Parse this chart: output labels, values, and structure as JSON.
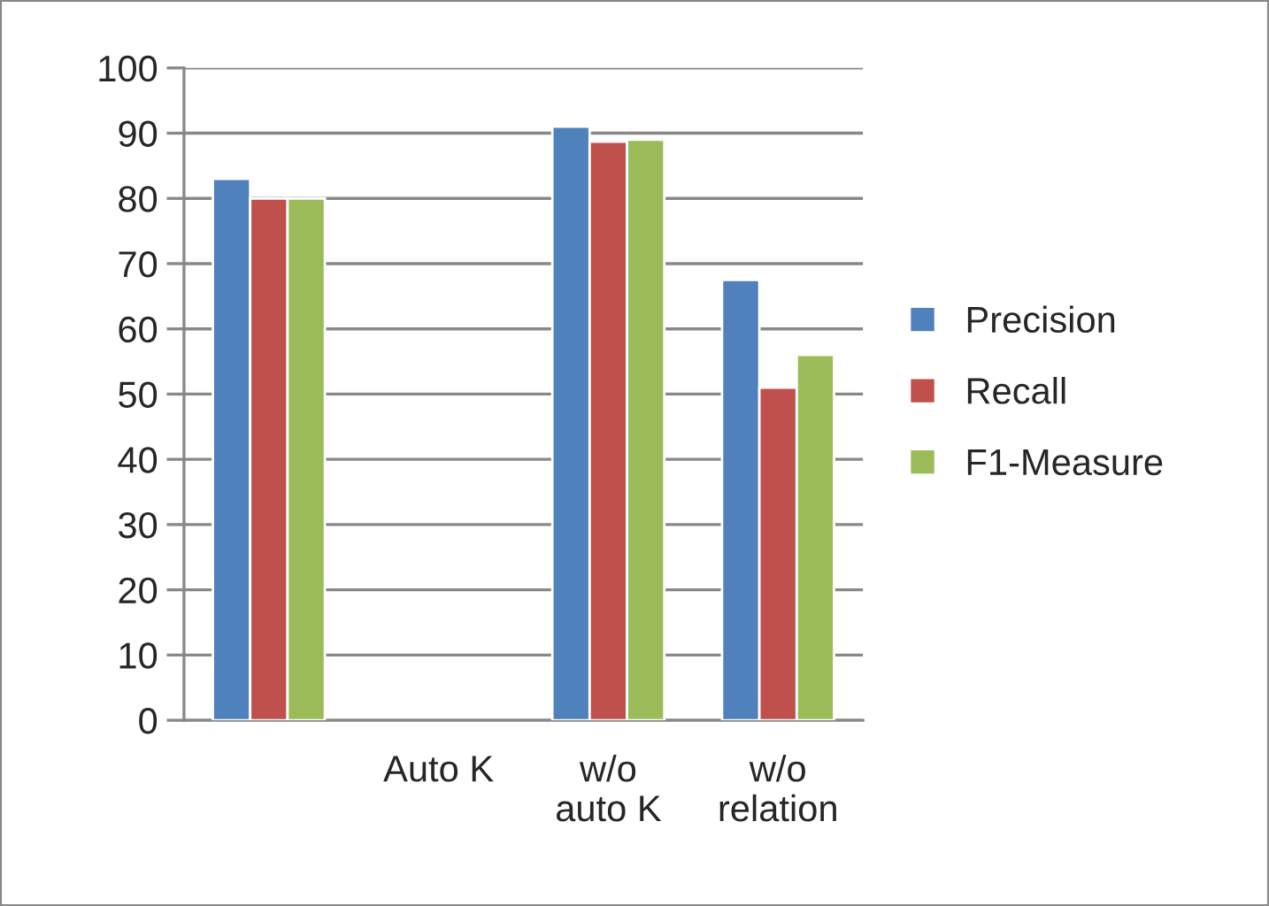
{
  "chart_data": {
    "type": "bar",
    "categories": [
      null,
      "Auto K",
      "w/o\nauto K",
      "w/o\nrelation"
    ],
    "series": [
      {
        "name": "Precision",
        "color": "#4f81bd",
        "values": [
          83,
          null,
          91,
          67.5
        ]
      },
      {
        "name": "Recall",
        "color": "#c0504d",
        "values": [
          80,
          null,
          88.7,
          51
        ]
      },
      {
        "name": "F1-Measure",
        "color": "#9bbb59",
        "values": [
          80,
          null,
          89,
          56
        ]
      }
    ],
    "ylim": [
      0,
      100
    ],
    "yticks": [
      0,
      10,
      20,
      30,
      40,
      50,
      60,
      70,
      80,
      90,
      100
    ],
    "grid": "y",
    "legend": "right"
  }
}
